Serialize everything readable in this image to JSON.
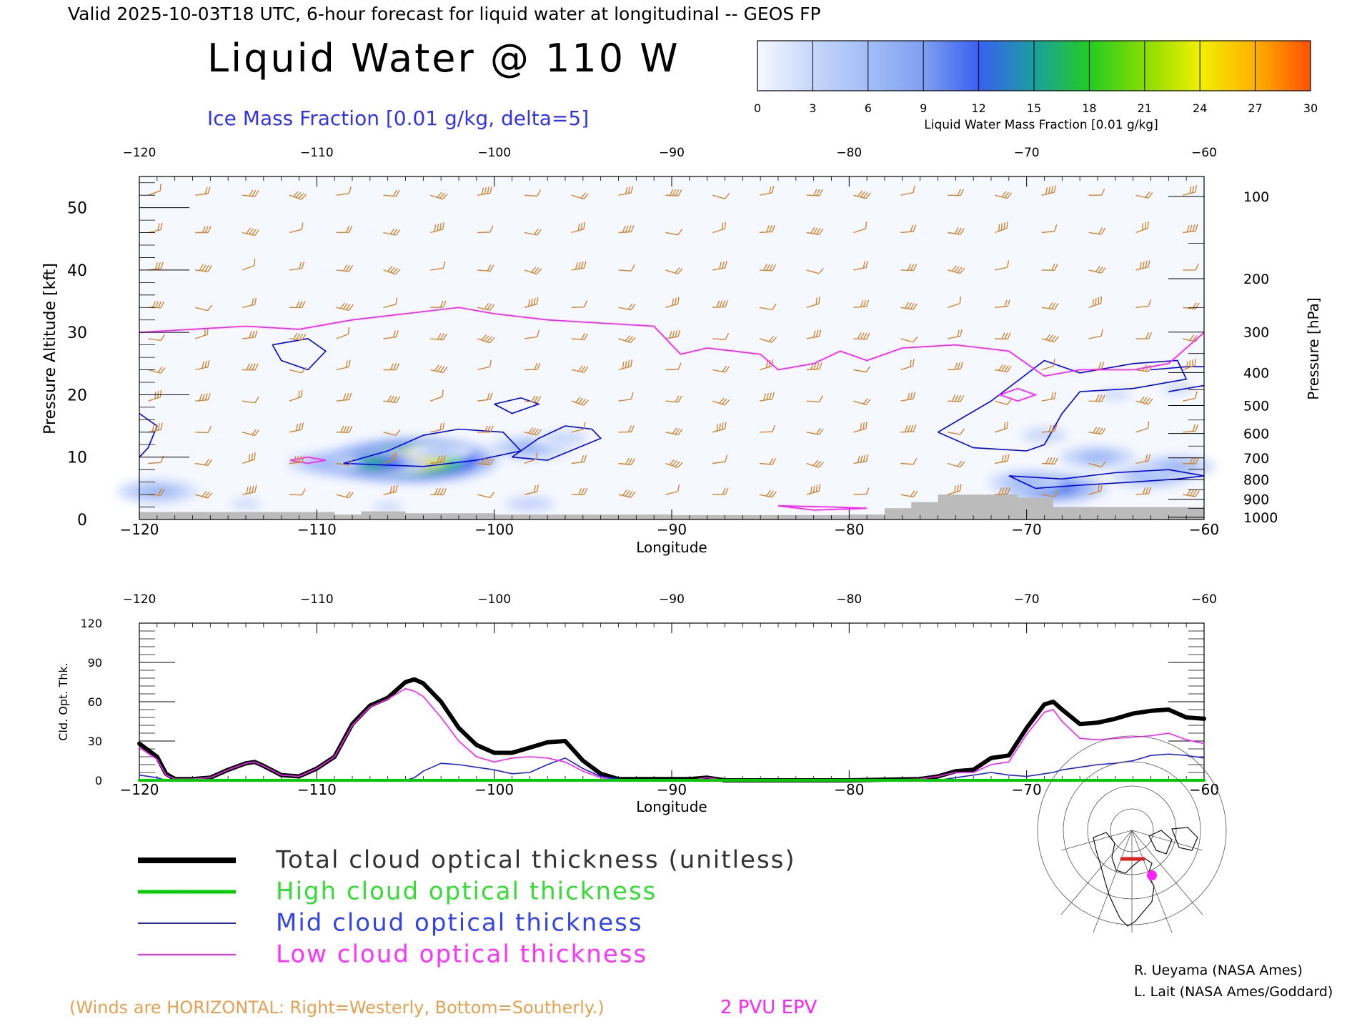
{
  "header": {
    "valid_line": "Valid 2025-10-03T18 UTC, 6-hour forecast for liquid water at longitudinal -- GEOS FP",
    "title": "Liquid Water @ 110 W",
    "subtitle": "Ice Mass Fraction [0.01 g/kg, delta=5]"
  },
  "colors": {
    "total": "#000000",
    "high": "#00cc00",
    "mid": "#2222dd",
    "low": "#ff22ff",
    "wind": "#cc8833",
    "ice_contour": "#0000ee",
    "ground": "#bbbbbb"
  },
  "colorbar": {
    "label": "Liquid Water Mass Fraction [0.01 g/kg]",
    "ticks": [
      "0",
      "3",
      "6",
      "9",
      "12",
      "15",
      "18",
      "21",
      "24",
      "27",
      "30"
    ],
    "colors": [
      "#f6f8ff",
      "#c6d6fa",
      "#a2bdf6",
      "#7f9ff0",
      "#3a5ff0",
      "#1a9fa0",
      "#22cc22",
      "#88dd00",
      "#f0f000",
      "#ffb000",
      "#ff5000"
    ]
  },
  "chart_data": [
    {
      "type": "heatmap",
      "title": "Liquid Water @ 110 W",
      "xlabel": "Longitude",
      "ylabel": "Pressure Altitude [kft]",
      "y2label": "Pressure [hPa]",
      "xlim": [
        -120,
        -60
      ],
      "ylim": [
        0,
        55
      ],
      "xticks": [
        "−120",
        "−110",
        "−100",
        "−90",
        "−80",
        "−70",
        "−60"
      ],
      "yticks": [
        "0",
        "10",
        "20",
        "30",
        "40",
        "50"
      ],
      "pressure_ticks": [
        "100",
        "200",
        "300",
        "400",
        "500",
        "600",
        "700",
        "800",
        "900",
        "1000"
      ],
      "liquid_blobs": [
        {
          "lon": -104.5,
          "alt": 9.5,
          "peak": 29
        },
        {
          "lon": -107.0,
          "alt": 9.0,
          "peak": 18
        },
        {
          "lon": -109.5,
          "alt": 9.0,
          "peak": 8
        },
        {
          "lon": -103.0,
          "alt": 11.0,
          "peak": 6
        },
        {
          "lon": -98.0,
          "alt": 11.5,
          "peak": 9
        },
        {
          "lon": -96.0,
          "alt": 13.0,
          "peak": 4
        },
        {
          "lon": -119.0,
          "alt": 4.5,
          "peak": 9
        },
        {
          "lon": -114.0,
          "alt": 2.5,
          "peak": 3
        },
        {
          "lon": -106.0,
          "alt": 2.0,
          "peak": 3
        },
        {
          "lon": -98.0,
          "alt": 2.5,
          "peak": 5
        },
        {
          "lon": -68.5,
          "alt": 5.0,
          "peak": 16
        },
        {
          "lon": -70.0,
          "alt": 6.0,
          "peak": 8
        },
        {
          "lon": -66.0,
          "alt": 10.0,
          "peak": 8
        },
        {
          "lon": -63.0,
          "alt": 7.0,
          "peak": 9
        },
        {
          "lon": -61.5,
          "alt": 8.5,
          "peak": 8
        },
        {
          "lon": -69.0,
          "alt": 13.5,
          "peak": 4
        },
        {
          "lon": -65.0,
          "alt": 20.0,
          "peak": 3
        },
        {
          "lon": -61.5,
          "alt": 21.0,
          "peak": 3
        }
      ],
      "epv_2pvu": {
        "lon": [
          -120,
          -117,
          -114,
          -111,
          -108,
          -105,
          -102,
          -100,
          -97,
          -94,
          -91,
          -89.5,
          -88,
          -85,
          -84,
          -82,
          -80.5,
          -79,
          -77,
          -74,
          -71,
          -69,
          -67,
          -64,
          -62,
          -60
        ],
        "alt": [
          30,
          30.5,
          31,
          30.5,
          32,
          33,
          34,
          33,
          32,
          31.5,
          31,
          26.5,
          27.5,
          26.5,
          24,
          25,
          27,
          25.5,
          27.5,
          28,
          27,
          23,
          24,
          24,
          25,
          30
        ]
      },
      "ground_height": [
        {
          "lon": -120,
          "alt": 1.2
        },
        {
          "lon": -116.5,
          "alt": 1.2
        },
        {
          "lon": -109,
          "alt": 0.8
        },
        {
          "lon": -107.5,
          "alt": 1.3
        },
        {
          "lon": -105,
          "alt": 1.0
        },
        {
          "lon": -100,
          "alt": 0.8
        },
        {
          "lon": -90,
          "alt": 0.7
        },
        {
          "lon": -80,
          "alt": 0.8
        },
        {
          "lon": -78,
          "alt": 1.8
        },
        {
          "lon": -76.5,
          "alt": 2.8
        },
        {
          "lon": -75,
          "alt": 4.0
        },
        {
          "lon": -70.5,
          "alt": 3.5
        },
        {
          "lon": -68.5,
          "alt": 2.0
        },
        {
          "lon": -60,
          "alt": 1.8
        }
      ]
    },
    {
      "type": "line",
      "xlabel": "Longitude",
      "ylabel": "Cld. Opt. Thk.",
      "xlim": [
        -120,
        -60
      ],
      "ylim": [
        0,
        120
      ],
      "xticks": [
        "−120",
        "−110",
        "−100",
        "−90",
        "−80",
        "−70",
        "−60"
      ],
      "yticks": [
        "0",
        "30",
        "60",
        "90",
        "120"
      ],
      "x": [
        -120,
        -119,
        -118.5,
        -118,
        -117,
        -116,
        -115,
        -114,
        -113.5,
        -113,
        -112,
        -111,
        -110,
        -109,
        -108,
        -107,
        -106,
        -105,
        -104.5,
        -104,
        -103,
        -102,
        -101,
        -100,
        -99,
        -98,
        -97,
        -96,
        -95,
        -94,
        -93,
        -92,
        -91,
        -90,
        -89,
        -88,
        -87,
        -85,
        -80,
        -76,
        -75,
        -74,
        -73,
        -72,
        -71,
        -70,
        -69,
        -68.5,
        -68,
        -67,
        -66,
        -65,
        -64,
        -63,
        -62,
        -61,
        -60
      ],
      "series": [
        {
          "name": "Total cloud optical thickness (unitless)",
          "values": [
            28,
            18,
            5,
            1,
            1,
            2,
            8,
            13,
            14,
            11,
            4,
            3,
            9,
            18,
            43,
            57,
            63,
            75,
            77,
            74,
            60,
            40,
            27,
            21,
            21,
            25,
            29,
            30,
            15,
            5,
            1,
            1,
            1,
            1,
            1,
            2,
            0,
            0,
            0,
            1,
            3,
            7,
            8,
            17,
            19,
            40,
            58,
            60,
            54,
            43,
            44,
            47,
            51,
            53,
            54,
            48,
            47
          ]
        },
        {
          "name": "High cloud optical thickness",
          "values": [
            0,
            0,
            0,
            0,
            0,
            0,
            0,
            0,
            0,
            0,
            0,
            0,
            0,
            0,
            0,
            0,
            0,
            0,
            0,
            0,
            0,
            0,
            0,
            0,
            0,
            0,
            0,
            0,
            0,
            0,
            0,
            0,
            0,
            0,
            0,
            0,
            0,
            0,
            0,
            0,
            0,
            0,
            0,
            0,
            0,
            0,
            0,
            0,
            0,
            0,
            0,
            0,
            0,
            0,
            0,
            0,
            0
          ]
        },
        {
          "name": "Mid cloud optical thickness",
          "values": [
            4,
            2,
            0,
            0,
            0,
            0,
            0,
            0,
            0,
            0,
            0,
            0,
            0,
            0,
            0,
            0,
            0,
            0,
            2,
            7,
            13,
            12,
            10,
            8,
            5,
            6,
            12,
            17,
            9,
            3,
            1,
            0,
            0,
            0,
            0,
            0,
            0,
            0,
            0,
            0,
            0,
            2,
            4,
            6,
            4,
            3,
            5,
            6,
            8,
            10,
            12,
            13,
            15,
            19,
            20,
            19,
            17
          ]
        },
        {
          "name": "Low cloud optical thickness",
          "values": [
            25,
            16,
            4,
            1,
            1,
            2,
            8,
            13,
            14,
            11,
            4,
            3,
            9,
            18,
            42,
            56,
            62,
            70,
            68,
            64,
            48,
            30,
            18,
            14,
            17,
            18,
            17,
            14,
            7,
            2,
            0,
            0,
            0,
            0,
            0,
            2,
            0,
            0,
            0,
            1,
            3,
            6,
            6,
            12,
            14,
            35,
            52,
            54,
            45,
            32,
            31,
            32,
            33,
            34,
            36,
            31,
            28
          ]
        }
      ]
    }
  ],
  "footer": {
    "winds_note": "(Winds are HORIZONTAL: Right=Westerly, Bottom=Southerly.)",
    "epv_note": "2 PVU EPV",
    "credit1": "R. Ueyama (NASA Ames)",
    "credit2": "L. Lait (NASA Ames/Goddard)"
  },
  "map": {
    "section_color": "#dd2222",
    "point_color": "#ff22ff"
  }
}
